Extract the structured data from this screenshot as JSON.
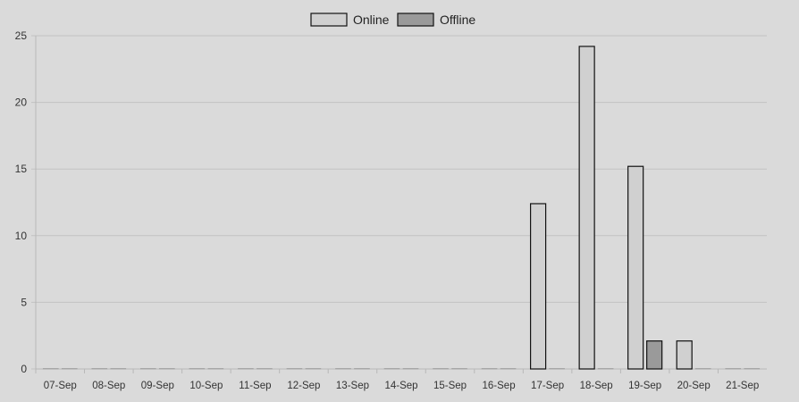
{
  "chart_data": {
    "type": "bar",
    "title": "",
    "xlabel": "",
    "ylabel": "",
    "categories": [
      "07-Sep",
      "08-Sep",
      "09-Sep",
      "10-Sep",
      "11-Sep",
      "12-Sep",
      "13-Sep",
      "14-Sep",
      "15-Sep",
      "16-Sep",
      "17-Sep",
      "18-Sep",
      "19-Sep",
      "20-Sep",
      "21-Sep"
    ],
    "series": [
      {
        "name": "Online",
        "color": "#d0d0d0",
        "values": [
          0,
          0,
          0,
          0,
          0,
          0,
          0,
          0,
          0,
          0,
          12.4,
          24.2,
          15.2,
          2.1,
          0
        ]
      },
      {
        "name": "Offline",
        "color": "#9a9a9a",
        "values": [
          0,
          0,
          0,
          0,
          0,
          0,
          0,
          0,
          0,
          0,
          0,
          0,
          2.1,
          0,
          0
        ]
      }
    ],
    "ylim": [
      0,
      25
    ],
    "yticks": [
      0,
      5,
      10,
      15,
      20,
      25
    ],
    "grid": true,
    "legend_position": "top-center"
  }
}
